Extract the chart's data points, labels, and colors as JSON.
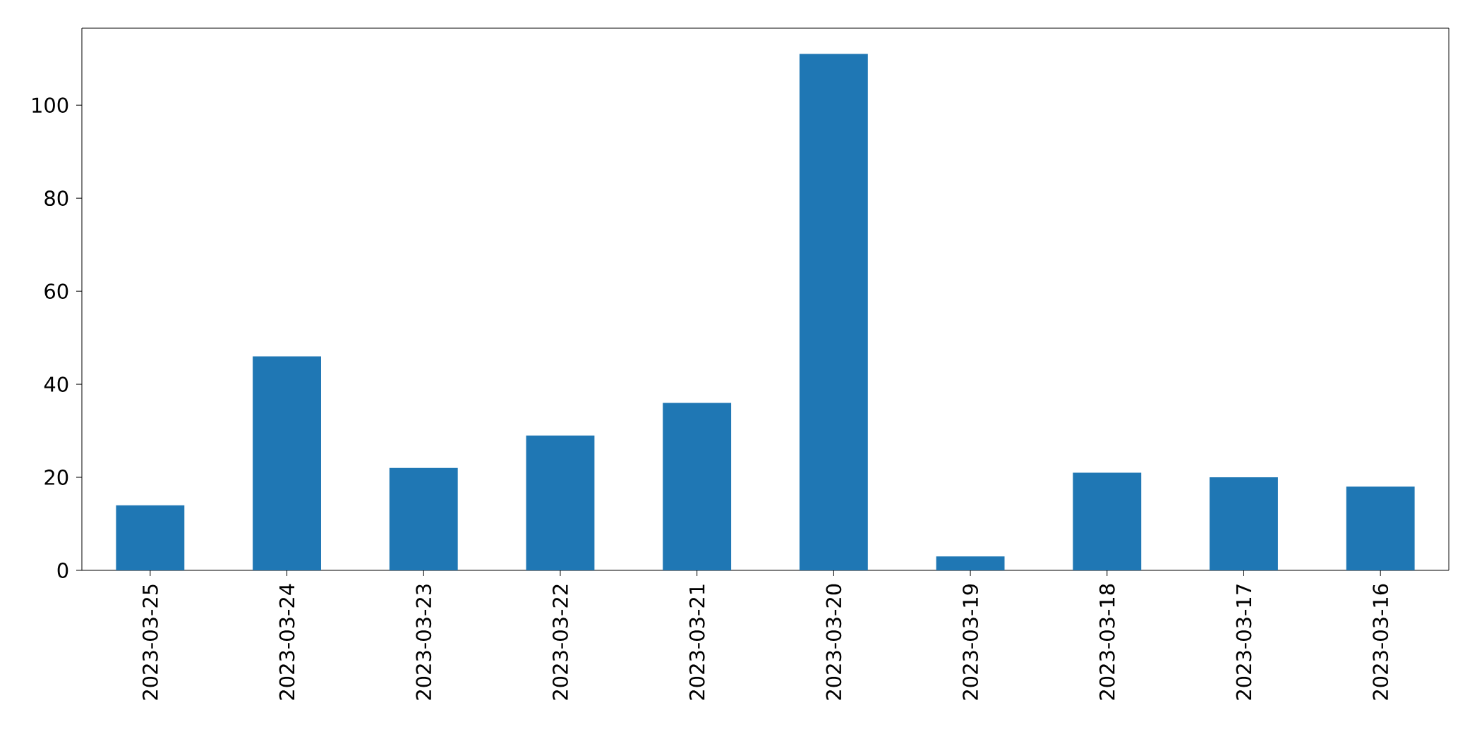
{
  "chart_data": {
    "type": "bar",
    "categories": [
      "2023-03-25",
      "2023-03-24",
      "2023-03-23",
      "2023-03-22",
      "2023-03-21",
      "2023-03-20",
      "2023-03-19",
      "2023-03-18",
      "2023-03-17",
      "2023-03-16"
    ],
    "values": [
      14,
      46,
      22,
      29,
      36,
      111,
      3,
      21,
      20,
      18
    ],
    "color": "#1f77b4",
    "ylim": [
      0,
      116.55
    ],
    "yticks": [
      0,
      20,
      40,
      60,
      80,
      100
    ]
  }
}
